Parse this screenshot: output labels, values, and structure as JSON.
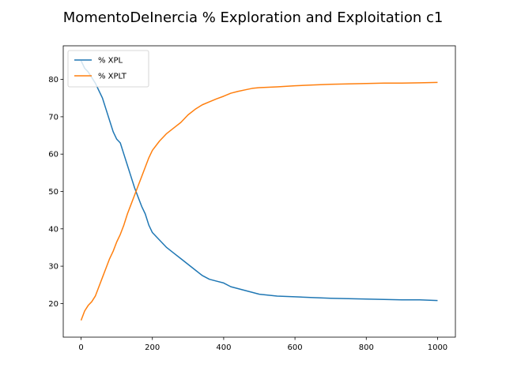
{
  "chart_data": {
    "type": "line",
    "title": "MomentoDeInercia % Exploration and Exploitation c1",
    "xlabel": "",
    "ylabel": "",
    "xlim": [
      -50,
      1050
    ],
    "ylim": [
      11,
      89
    ],
    "x_ticks": [
      0,
      200,
      400,
      600,
      800,
      1000
    ],
    "y_ticks": [
      20,
      30,
      40,
      50,
      60,
      70,
      80
    ],
    "legend_position": "top-left",
    "grid": false,
    "series": [
      {
        "name": "% XPL",
        "color": "#1f77b4",
        "x": [
          0,
          10,
          20,
          30,
          40,
          50,
          60,
          70,
          80,
          90,
          100,
          110,
          120,
          130,
          140,
          150,
          160,
          170,
          180,
          190,
          200,
          220,
          240,
          260,
          280,
          300,
          320,
          340,
          360,
          380,
          400,
          420,
          440,
          460,
          480,
          500,
          550,
          600,
          650,
          700,
          750,
          800,
          850,
          900,
          950,
          1000
        ],
        "y": [
          85,
          83,
          82,
          80.5,
          79,
          77,
          75,
          72,
          69,
          66,
          64,
          63,
          60,
          57,
          54,
          51,
          48.5,
          46,
          44,
          41,
          39,
          37,
          35,
          33.5,
          32,
          30.5,
          29,
          27.5,
          26.5,
          26,
          25.5,
          24.5,
          24,
          23.5,
          23,
          22.5,
          22,
          21.8,
          21.6,
          21.4,
          21.3,
          21.2,
          21.1,
          21,
          21,
          20.8
        ]
      },
      {
        "name": "% XPLT",
        "color": "#ff7f0e",
        "x": [
          0,
          10,
          20,
          30,
          40,
          50,
          60,
          70,
          80,
          90,
          100,
          110,
          120,
          130,
          140,
          150,
          160,
          170,
          180,
          190,
          200,
          220,
          240,
          260,
          280,
          300,
          320,
          340,
          360,
          380,
          400,
          420,
          440,
          460,
          480,
          500,
          550,
          600,
          650,
          700,
          750,
          800,
          850,
          900,
          950,
          1000
        ],
        "y": [
          15.5,
          18,
          19.5,
          20.5,
          22,
          24.5,
          27,
          29.5,
          32,
          34,
          36.5,
          38.5,
          41,
          44,
          46.5,
          49,
          51.5,
          54,
          56.5,
          59,
          61,
          63.5,
          65.5,
          67,
          68.5,
          70.5,
          72,
          73.2,
          74,
          74.8,
          75.5,
          76.3,
          76.8,
          77.2,
          77.6,
          77.8,
          78,
          78.3,
          78.5,
          78.7,
          78.8,
          78.9,
          79,
          79,
          79.1,
          79.2
        ]
      }
    ]
  }
}
